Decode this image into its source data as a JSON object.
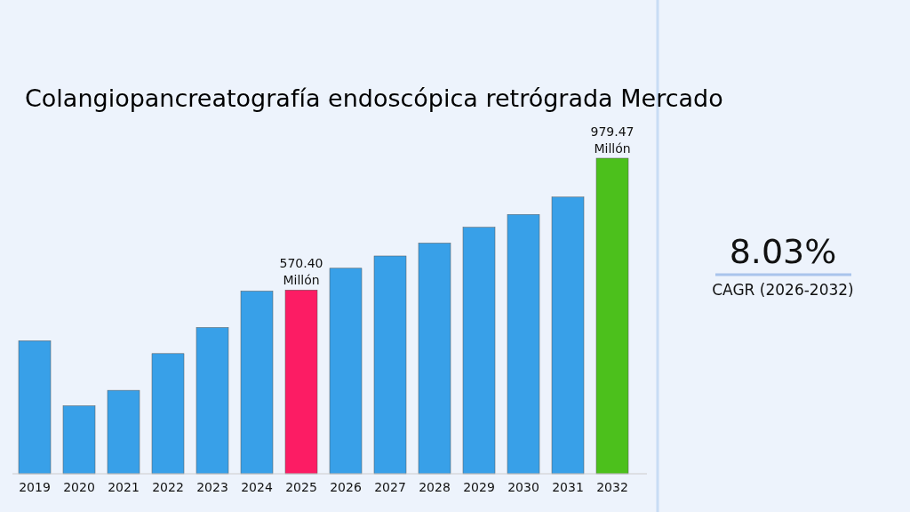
{
  "chart_data": {
    "type": "bar",
    "title": "Colangiopancreatografía endoscópica retrógrada Mercado",
    "categories": [
      "2019",
      "2020",
      "2021",
      "2022",
      "2023",
      "2024",
      "2025",
      "2026",
      "2027",
      "2028",
      "2029",
      "2030",
      "2031",
      "2032"
    ],
    "values": [
      413,
      211,
      259,
      373,
      454,
      567,
      570.4,
      638,
      676,
      716,
      765,
      805,
      859,
      979.47
    ],
    "colors": [
      "#38a0e8",
      "#38a0e8",
      "#38a0e8",
      "#38a0e8",
      "#38a0e8",
      "#38a0e8",
      "#fc1c64",
      "#38a0e8",
      "#38a0e8",
      "#38a0e8",
      "#38a0e8",
      "#38a0e8",
      "#38a0e8",
      "#4cc01c"
    ],
    "value_labels": [
      null,
      null,
      null,
      null,
      null,
      null,
      "570.40 Millón",
      null,
      null,
      null,
      null,
      null,
      null,
      "979.47 Millón"
    ],
    "annotations": [
      "8.03%",
      "CAGR (2026-2032)"
    ],
    "grid": false
  }
}
